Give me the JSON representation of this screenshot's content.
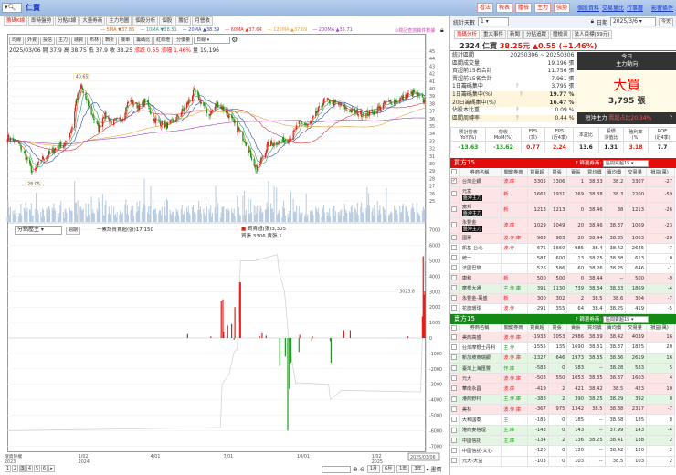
{
  "app": {
    "stock_title": "仁寶",
    "search_icon": "magnifier"
  },
  "left_tabs": [
    "籌碼K線",
    "即時盤勢",
    "分點K線",
    "大量券商",
    "主力地圖",
    "個股分析",
    "個股",
    "籌記",
    "月營收"
  ],
  "ma_legend": [
    {
      "label": "5MA ▼37.85",
      "color": "#d2691e"
    },
    {
      "label": "10MA ▼38.51",
      "color": "#2e9a8a"
    },
    {
      "label": "20MA ▲38.39",
      "color": "#3344aa"
    },
    {
      "label": "60MA ▲37.64",
      "color": "#e03030"
    },
    {
      "label": "120MA ▲37.09",
      "color": "#e8a33c"
    },
    {
      "label": "200MA ▲35.71",
      "color": "#a040c0"
    }
  ],
  "ma_query": "⊙標記查詢條件數據",
  "toolbar": [
    "均線",
    "外資",
    "投信",
    "主力",
    "融資",
    "布林",
    "轉折",
    "接單",
    "籌碼比",
    "紅綠燈",
    "分價量"
  ],
  "period_select": "日線",
  "ohlc": {
    "date": "2025/03/06",
    "open": "開 37.9",
    "high": "高 38.75",
    "low": "低 37.9",
    "close": "收 38.25",
    "change": "漲跌 0.55",
    "pct": "漲幅 1.46%",
    "vol": "量 19,196"
  },
  "lower_panel": {
    "select": "分點壓主",
    "button": "週期",
    "cum_label": "一累計買賣超(張)17,150",
    "net_label": "買賣超(張)3,305",
    "bs_label": "買張 3306 賣張 1",
    "last_value": "3023.8"
  },
  "chart_data": [
    {
      "type": "candlestick",
      "ylim": [
        25,
        45
      ],
      "yticks": [
        45,
        44,
        43,
        42,
        41,
        40,
        39,
        38,
        37,
        36,
        35,
        34,
        33,
        32,
        31,
        30,
        29,
        28,
        27,
        26,
        25
      ],
      "annotations": [
        {
          "text": "40.65",
          "date": "2024-01-02",
          "price": 40.65
        },
        {
          "text": "28.05",
          "date": "2023-11-03",
          "price": 28.05
        }
      ],
      "close_path": [
        [
          "2023-10-02",
          33.5
        ],
        [
          "2023-10-17",
          32.5
        ],
        [
          "2023-10-27",
          30.5
        ],
        [
          "2023-11-03",
          28.6
        ],
        [
          "2023-11-13",
          30.5
        ],
        [
          "2023-11-25",
          31.5
        ],
        [
          "2023-12-06",
          32.5
        ],
        [
          "2023-12-14",
          32.6
        ],
        [
          "2023-12-22",
          35
        ],
        [
          "2023-12-27",
          38.5
        ],
        [
          "2024-01-02",
          40.2
        ],
        [
          "2024-01-12",
          37.5
        ],
        [
          "2024-01-24",
          34.5
        ],
        [
          "2024-01-30",
          36.5
        ],
        [
          "2024-02-10",
          35.5
        ],
        [
          "2024-02-22",
          36
        ],
        [
          "2024-03-02",
          38.5
        ],
        [
          "2024-03-15",
          37.5
        ],
        [
          "2024-03-23",
          38.5
        ],
        [
          "2024-04-01",
          36
        ],
        [
          "2024-04-18",
          35
        ],
        [
          "2024-04-30",
          36
        ],
        [
          "2024-05-11",
          37.5
        ],
        [
          "2024-05-22",
          39.6
        ],
        [
          "2024-05-29",
          38.5
        ],
        [
          "2024-06-10",
          36.5
        ],
        [
          "2024-06-20",
          38
        ],
        [
          "2024-07-01",
          37
        ],
        [
          "2024-07-10",
          35.5
        ],
        [
          "2024-07-25",
          33
        ],
        [
          "2024-08-05",
          30
        ],
        [
          "2024-08-08",
          29
        ],
        [
          "2024-08-22",
          32.5
        ],
        [
          "2024-09-08",
          33
        ],
        [
          "2024-09-20",
          33.5
        ],
        [
          "2024-10-01",
          35.5
        ],
        [
          "2024-10-12",
          35
        ],
        [
          "2024-11-01",
          38.5
        ],
        [
          "2024-11-15",
          38
        ],
        [
          "2024-12-05",
          37
        ],
        [
          "2024-12-22",
          36.5
        ],
        [
          "2025-01-02",
          37
        ],
        [
          "2025-01-15",
          38
        ],
        [
          "2025-02-01",
          38.5
        ],
        [
          "2025-02-20",
          39.5
        ],
        [
          "2025-03-06",
          38.25
        ]
      ],
      "xticks": [
        [
          "2023-10-02",
          "增資除權",
          "2023"
        ],
        [
          "2024-01-02",
          "1/02",
          "2024"
        ],
        [
          "2024-04-01",
          "4/01",
          ""
        ],
        [
          "2024-07-01",
          "7/01",
          ""
        ],
        [
          "2024-10-01",
          "10/01",
          ""
        ],
        [
          "2025-01-02",
          "1/02",
          "2025"
        ]
      ],
      "current_date": "2025/03/06"
    },
    {
      "type": "bar",
      "ylim": [
        -7000,
        7000
      ],
      "yticks": [
        7000,
        6000,
        5000,
        4000,
        3000,
        2000,
        1000,
        0,
        -1000,
        -2000,
        -3000,
        -4000,
        -5000,
        -6000,
        -7000
      ],
      "net_buy_sell": [
        [
          "2024-05-14",
          250
        ],
        [
          "2024-06-12",
          100
        ],
        [
          "2024-06-25",
          2400
        ],
        [
          "2024-06-27",
          2500
        ],
        [
          "2024-06-28",
          400
        ],
        [
          "2024-07-03",
          800
        ],
        [
          "2024-07-08",
          900
        ],
        [
          "2024-07-11",
          -100
        ],
        [
          "2024-07-12",
          2000
        ],
        [
          "2024-07-18",
          3600
        ],
        [
          "2024-07-19",
          3600
        ],
        [
          "2024-08-12",
          100
        ],
        [
          "2024-08-15",
          300
        ],
        [
          "2024-08-20",
          150
        ],
        [
          "2024-09-06",
          -1800
        ],
        [
          "2024-09-13",
          -1200
        ],
        [
          "2024-09-16",
          -6000
        ],
        [
          "2024-09-18",
          -3300
        ],
        [
          "2024-09-20",
          -1600
        ],
        [
          "2024-09-30",
          -900
        ],
        [
          "2024-10-01",
          200
        ],
        [
          "2024-10-16",
          -200
        ],
        [
          "2024-10-17",
          100
        ],
        [
          "2024-11-08",
          -200
        ],
        [
          "2024-11-09",
          -1600
        ],
        [
          "2024-11-25",
          500
        ],
        [
          "2024-12-03",
          500
        ],
        [
          "2025-02-13",
          100
        ],
        [
          "2025-03-03",
          1400
        ],
        [
          "2025-03-04",
          5300
        ],
        [
          "2025-03-05",
          2800
        ],
        [
          "2025-03-06",
          3023.8
        ]
      ],
      "cumulative_line": [
        [
          "2023-10-02",
          -6000
        ],
        [
          "2024-06-24",
          -5800
        ],
        [
          "2024-06-26",
          -3000
        ],
        [
          "2024-07-05",
          -2300
        ],
        [
          "2024-07-11",
          -900
        ],
        [
          "2024-07-15",
          -700
        ],
        [
          "2024-07-19",
          5000
        ],
        [
          "2024-08-05",
          5000
        ],
        [
          "2024-09-03",
          5400
        ],
        [
          "2024-09-05",
          4300
        ],
        [
          "2024-09-12",
          3000
        ],
        [
          "2024-09-17",
          0
        ],
        [
          "2024-09-26",
          -3000
        ],
        [
          "2024-09-28",
          -2900
        ],
        [
          "2024-11-06",
          -3000
        ],
        [
          "2024-11-08",
          -4000
        ],
        [
          "2024-11-22",
          -3400
        ],
        [
          "2024-12-01",
          -3400
        ],
        [
          "2025-03-01",
          -3500
        ],
        [
          "2025-03-06",
          5500
        ]
      ]
    }
  ],
  "pager": {
    "pages": [
      "1",
      "2",
      "3",
      "4",
      "5",
      "6",
      "▸"
    ],
    "ranges": [
      "1月",
      "6月",
      "1年",
      "3年"
    ],
    "more": "畫價"
  },
  "right": {
    "top_buttons": [
      "看法",
      "報表",
      "體檢",
      "主力",
      "強勢"
    ],
    "top_links": [
      "個股資料",
      "交易量比",
      "行事曆",
      "影響條件"
    ],
    "days_label": "統計天數",
    "days_value": "1",
    "date_label": "日期",
    "date_value": "2025/3/6",
    "today_button": "今天",
    "tabs": [
      "籌碼分析",
      "重大事件",
      "新聞",
      "分點追蹤",
      "體檢表",
      "法人目標(39元)"
    ],
    "quote": {
      "code_name": "2324 仁寶",
      "price": "38.25元",
      "change": "▲0.55 (+1.46%)"
    },
    "stats": [
      [
        "統計區間",
        "20250306 ~ 20250306",
        ""
      ],
      [
        "區間成交量",
        "19,196 張",
        ""
      ],
      [
        "買超前15名合計",
        "11,756 張",
        ""
      ],
      [
        "賣超前15名合計",
        "-7,961 張",
        ""
      ],
      [
        "1日籌碼集中",
        "3,795 張",
        "?"
      ],
      [
        "1日籌碼集中(%)",
        "19.77 %",
        "?"
      ],
      [
        "20日籌碼集中(%)",
        "16.47 %",
        ""
      ],
      [
        "佔股本比重",
        "0.09 %",
        "?"
      ],
      [
        "區間周轉率",
        "0.44 %",
        "?"
      ]
    ],
    "today": {
      "title1": "今日",
      "title2": "主力動向",
      "verdict": "大買",
      "amount": "3,795 張",
      "short_label": "短沖主力",
      "short_value": "賣超占比20.34%",
      "help": "?"
    },
    "fund_headers": [
      "累計營收\nYoY(%)",
      "營收\nMoM(%)",
      "EPS\n(季)",
      "EPS\n(近4季)",
      "本益比",
      "股價\n淨值比",
      "殖利率\n(%)",
      "ROE\n(近4季)"
    ],
    "fund_values": [
      "-13.63",
      "-13.62",
      "0.77",
      "2.24",
      "13.6",
      "1.31",
      "3.18",
      "7.7"
    ],
    "fund_colors": [
      "#1a9a1a",
      "#1a9a1a",
      "#d21",
      "#d21",
      "#222",
      "#222",
      "#d21",
      "#222"
    ],
    "table_headers": [
      "",
      "券商名稱",
      "關鍵券商",
      "買賣超",
      "買張",
      "賣張",
      "買均價",
      "賣均價",
      "交易量",
      "損益(萬)"
    ],
    "buyers": {
      "title": "買方15",
      "filter_label": "? 篩選券商:",
      "filter_value": "區間買超15",
      "color": "#e30b0b",
      "rows": [
        {
          "name": "台灣企銀",
          "tag": "波.庫",
          "tagc": "r",
          "bg": "p",
          "checked": true,
          "v": [
            "3305",
            "3306",
            "1",
            "38.33",
            "38.2",
            "3307",
            "-27"
          ]
        },
        {
          "name": "元富",
          "badge": "盤沖主力",
          "tag": "新",
          "tagc": "r",
          "bg": "p",
          "v": [
            "1662",
            "1931",
            "269",
            "38.38",
            "38.3",
            "2200",
            "-59"
          ]
        },
        {
          "name": "富邦",
          "badge": "盤沖主力",
          "tag": "新",
          "tagc": "r",
          "bg": "p",
          "v": [
            "1213",
            "1213",
            "0",
            "38.46",
            "38",
            "1213",
            "-26"
          ]
        },
        {
          "name": "永豐金",
          "badge": "盤沖主力",
          "tag": "波.庫",
          "tagc": "r",
          "bg": "p",
          "v": [
            "1029",
            "1049",
            "20",
            "38.46",
            "38.37",
            "1069",
            "-23"
          ]
        },
        {
          "name": "國票",
          "tag": "波.作.庫",
          "tagc": "r",
          "bg": "p",
          "v": [
            "963",
            "983",
            "20",
            "38.44",
            "38.35",
            "1003",
            "-20"
          ]
        },
        {
          "name": "凱基-台北",
          "tag": "波.作",
          "tagc": "r",
          "bg": "w",
          "v": [
            "675",
            "1660",
            "985",
            "38.4",
            "38.42",
            "2645",
            "-7"
          ]
        },
        {
          "name": "統一",
          "tag": "",
          "bg": "w",
          "v": [
            "587",
            "600",
            "13",
            "38.25",
            "38.38",
            "613",
            "0"
          ]
        },
        {
          "name": "法國巴黎",
          "tag": "",
          "bg": "w",
          "v": [
            "526",
            "586",
            "60",
            "38.26",
            "38.25",
            "646",
            "-1"
          ]
        },
        {
          "name": "康和",
          "tag": "新",
          "tagc": "r",
          "bg": "p",
          "v": [
            "500",
            "500",
            "0",
            "38.44",
            "--",
            "500",
            "-9"
          ]
        },
        {
          "name": "摩根大通",
          "tag": "主.作.庫",
          "tagc": "g",
          "bg": "g",
          "v": [
            "391",
            "1130",
            "739",
            "38.34",
            "38.33",
            "1869",
            "-4"
          ]
        },
        {
          "name": "永豐金-萬盛",
          "tag": "新",
          "tagc": "r",
          "bg": "p",
          "v": [
            "300",
            "302",
            "2",
            "38.5",
            "38.6",
            "304",
            "-7"
          ]
        },
        {
          "name": "花旗環球",
          "tag": "波.作",
          "tagc": "r",
          "bg": "w",
          "v": [
            "291",
            "355",
            "64",
            "38.4",
            "38.25",
            "419",
            "-5"
          ]
        }
      ]
    },
    "sellers": {
      "title": "賣方15",
      "filter_label": "? 篩選券商:",
      "filter_value": "區間賣超15",
      "color": "#138a13",
      "rows": [
        {
          "name": "美商高盛",
          "tag": "波.作.庫",
          "tagc": "r",
          "bg": "p",
          "v": [
            "-1933",
            "1053",
            "2986",
            "38.39",
            "38.42",
            "4039",
            "16"
          ]
        },
        {
          "name": "台灣摩根士丹利",
          "tag": "主.作",
          "tagc": "g",
          "bg": "w",
          "v": [
            "-1555",
            "135",
            "1690",
            "38.31",
            "38.37",
            "1825",
            "20"
          ]
        },
        {
          "name": "新加坡商瑞銀",
          "tag": "波.作.庫",
          "tagc": "r",
          "bg": "g",
          "v": [
            "-1327",
            "646",
            "1973",
            "38.35",
            "38.36",
            "2619",
            "16"
          ]
        },
        {
          "name": "臺灣上海匯豐",
          "tag": "作.庫",
          "tagc": "g",
          "bg": "g",
          "v": [
            "-583",
            "0",
            "583",
            "--",
            "38.28",
            "583",
            "5"
          ]
        },
        {
          "name": "元大",
          "tag": "波.作.庫",
          "tagc": "r",
          "bg": "p",
          "v": [
            "-503",
            "550",
            "1053",
            "38.35",
            "38.37",
            "1603",
            "4"
          ]
        },
        {
          "name": "華南永昌",
          "tag": "波.庫",
          "tagc": "r",
          "bg": "p",
          "v": [
            "-419",
            "2",
            "421",
            "38.42",
            "38.5",
            "423",
            "10"
          ]
        },
        {
          "name": "港商野村",
          "tag": "主.作.庫",
          "tagc": "g",
          "bg": "g",
          "v": [
            "-388",
            "2",
            "390",
            "38.25",
            "38.29",
            "392",
            "0"
          ]
        },
        {
          "name": "美林",
          "tag": "波.作.庫",
          "tagc": "r",
          "bg": "p",
          "v": [
            "-367",
            "975",
            "1342",
            "38.5",
            "38.38",
            "2317",
            "-7"
          ]
        },
        {
          "name": "大和國泰",
          "tag": "主",
          "tagc": "g",
          "bg": "w",
          "v": [
            "-185",
            "0",
            "185",
            "--",
            "38.68",
            "185",
            "8"
          ]
        },
        {
          "name": "港商麥格理",
          "tag": "主.庫",
          "tagc": "g",
          "bg": "g",
          "v": [
            "-143",
            "0",
            "143",
            "--",
            "37.99",
            "143",
            "-4"
          ]
        },
        {
          "name": "中國信託",
          "tag": "主.庫",
          "tagc": "g",
          "bg": "g",
          "v": [
            "-134",
            "2",
            "136",
            "38.25",
            "38.41",
            "138",
            "2"
          ]
        },
        {
          "name": "中國信託-文心",
          "tag": "",
          "bg": "w",
          "v": [
            "-120",
            "0",
            "120",
            "--",
            "38.42",
            "120",
            "2"
          ]
        },
        {
          "name": "元大-大益",
          "tag": "",
          "bg": "w",
          "v": [
            "-103",
            "0",
            "103",
            "--",
            "38.5",
            "103",
            "2"
          ]
        }
      ]
    }
  }
}
